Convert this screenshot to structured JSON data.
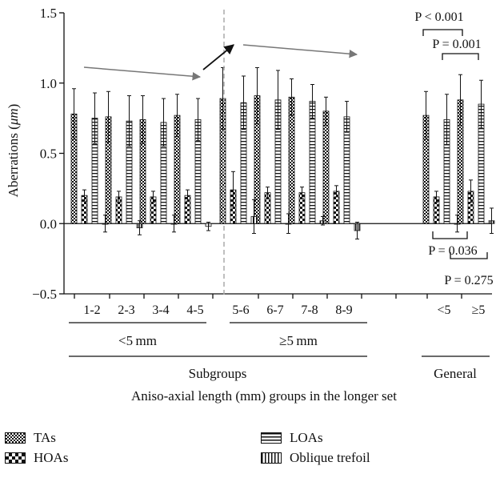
{
  "chart_data": {
    "type": "bar",
    "ylabel": "Aberrations (",
    "ylabel_unit": "μm",
    "ylabel_close": ")",
    "ylim": [
      -0.5,
      1.5
    ],
    "yticks": [
      "1.5",
      "1.0",
      "0.5",
      "0.0",
      "−0.5"
    ],
    "ytick_values": [
      1.5,
      1.0,
      0.5,
      0.0,
      -0.5
    ],
    "categories": [
      "1-2",
      "2-3",
      "3-4",
      "4-5",
      "5-6",
      "6-7",
      "7-8",
      "8-9",
      "<5",
      "≥5"
    ],
    "series": [
      {
        "name": "TAs",
        "values": [
          0.78,
          0.76,
          0.74,
          0.77,
          0.89,
          0.91,
          0.9,
          0.8,
          0.77,
          0.88
        ],
        "errors": [
          0.18,
          0.18,
          0.17,
          0.15,
          0.22,
          0.2,
          0.13,
          0.1,
          0.17,
          0.18
        ]
      },
      {
        "name": "HOAs",
        "values": [
          0.2,
          0.19,
          0.19,
          0.2,
          0.24,
          0.22,
          0.22,
          0.23,
          0.19,
          0.23
        ],
        "errors": [
          0.04,
          0.04,
          0.04,
          0.04,
          0.13,
          0.04,
          0.04,
          0.04,
          0.04,
          0.08
        ]
      },
      {
        "name": "LOAs",
        "values": [
          0.75,
          0.73,
          0.72,
          0.74,
          0.86,
          0.88,
          0.87,
          0.76,
          0.74,
          0.85
        ],
        "errors": [
          0.18,
          0.18,
          0.17,
          0.15,
          0.19,
          0.21,
          0.12,
          0.11,
          0.18,
          0.17
        ]
      },
      {
        "name": "Oblique trefoil",
        "values": [
          0.0,
          -0.03,
          0.0,
          -0.02,
          0.05,
          0.0,
          0.02,
          -0.05,
          0.0,
          0.02
        ],
        "errors": [
          0.06,
          0.05,
          0.06,
          0.03,
          0.12,
          0.07,
          0.03,
          0.06,
          0.06,
          0.09
        ]
      }
    ],
    "group_labels": {
      "lt5": "<5 mm",
      "ge5": "≥5 mm",
      "subgroups": "Subgroups",
      "general": "General"
    },
    "xlabel": "Aniso-axial length (mm) groups in the longer set",
    "annotations": {
      "p1": "P < 0.001",
      "p2": "P = 0.001",
      "p3": "P = 0.036",
      "p4": "P = 0.275"
    },
    "grid": false,
    "legend_position": "bottom",
    "colors": {
      "ink": "#111111",
      "divider": "#aaaaaa",
      "arrow": "#777777"
    }
  }
}
